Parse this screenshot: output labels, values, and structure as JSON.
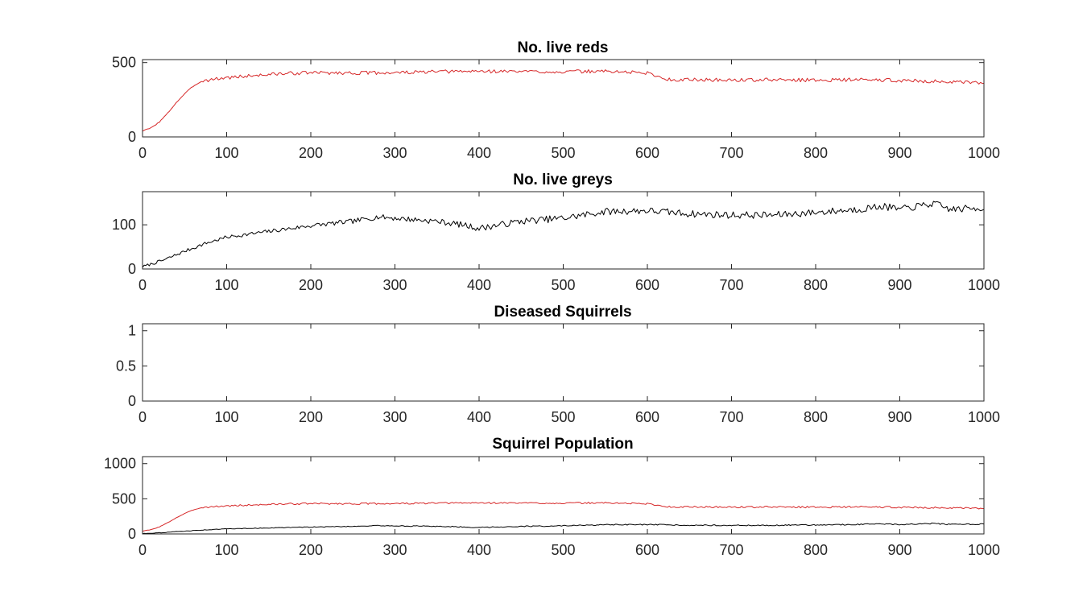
{
  "chart_data": [
    {
      "type": "line",
      "title": "No. live reds",
      "xlabel": "",
      "ylabel": "",
      "xlim": [
        0,
        1000
      ],
      "ylim": [
        0,
        520
      ],
      "xticks": [
        0,
        100,
        200,
        300,
        400,
        500,
        600,
        700,
        800,
        900,
        1000
      ],
      "xtick_labels": [
        "0",
        "100",
        "200",
        "300",
        "400",
        "500",
        "600",
        "700",
        "800",
        "900",
        "1000"
      ],
      "yticks": [
        0,
        500
      ],
      "ytick_labels": [
        "0",
        "500"
      ],
      "grid": false,
      "series": [
        {
          "color": "#d62728",
          "x": [
            0,
            10,
            20,
            30,
            40,
            50,
            60,
            70,
            80,
            90,
            100,
            125,
            150,
            175,
            200,
            250,
            300,
            350,
            400,
            450,
            500,
            550,
            600,
            625,
            650,
            700,
            750,
            800,
            850,
            900,
            950,
            1000
          ],
          "y": [
            40,
            60,
            100,
            160,
            230,
            290,
            340,
            375,
            385,
            392,
            398,
            410,
            420,
            428,
            432,
            430,
            432,
            438,
            442,
            440,
            438,
            442,
            430,
            385,
            385,
            382,
            384,
            382,
            385,
            380,
            372,
            360
          ]
        }
      ]
    },
    {
      "type": "line",
      "title": "No. live greys",
      "xlabel": "",
      "ylabel": "",
      "xlim": [
        0,
        1000
      ],
      "ylim": [
        0,
        175
      ],
      "xticks": [
        0,
        100,
        200,
        300,
        400,
        500,
        600,
        700,
        800,
        900,
        1000
      ],
      "xtick_labels": [
        "0",
        "100",
        "200",
        "300",
        "400",
        "500",
        "600",
        "700",
        "800",
        "900",
        "1000"
      ],
      "yticks": [
        0,
        100
      ],
      "ytick_labels": [
        "0",
        "100"
      ],
      "grid": false,
      "series": [
        {
          "color": "#000000",
          "x": [
            0,
            25,
            50,
            75,
            100,
            150,
            200,
            250,
            280,
            300,
            350,
            380,
            400,
            450,
            500,
            550,
            600,
            650,
            700,
            750,
            800,
            850,
            880,
            900,
            940,
            960,
            1000
          ],
          "y": [
            5,
            20,
            40,
            58,
            72,
            85,
            98,
            108,
            118,
            115,
            108,
            100,
            92,
            108,
            115,
            130,
            132,
            125,
            122,
            122,
            128,
            135,
            142,
            135,
            148,
            135,
            138
          ]
        }
      ]
    },
    {
      "type": "line",
      "title": "Diseased Squirrels",
      "xlabel": "",
      "ylabel": "",
      "xlim": [
        0,
        1000
      ],
      "ylim": [
        0,
        1.1
      ],
      "xticks": [
        0,
        100,
        200,
        300,
        400,
        500,
        600,
        700,
        800,
        900,
        1000
      ],
      "xtick_labels": [
        "0",
        "100",
        "200",
        "300",
        "400",
        "500",
        "600",
        "700",
        "800",
        "900",
        "1000"
      ],
      "yticks": [
        0,
        0.5,
        1
      ],
      "ytick_labels": [
        "0",
        "0.5",
        "1"
      ],
      "grid": false,
      "series": [
        {
          "color": "#000000",
          "x": [
            0,
            1000
          ],
          "y": [
            0,
            0
          ]
        },
        {
          "color": "#d62728",
          "x": [
            0,
            1000
          ],
          "y": [
            0,
            0
          ]
        }
      ]
    },
    {
      "type": "line",
      "title": "Squirrel Population",
      "xlabel": "",
      "ylabel": "",
      "xlim": [
        0,
        1000
      ],
      "ylim": [
        0,
        1100
      ],
      "xticks": [
        0,
        100,
        200,
        300,
        400,
        500,
        600,
        700,
        800,
        900,
        1000
      ],
      "xtick_labels": [
        "0",
        "100",
        "200",
        "300",
        "400",
        "500",
        "600",
        "700",
        "800",
        "900",
        "1000"
      ],
      "yticks": [
        0,
        500,
        1000
      ],
      "ytick_labels": [
        "0",
        "500",
        "1000"
      ],
      "grid": false,
      "series": [
        {
          "color": "#d62728",
          "x": [
            0,
            10,
            20,
            30,
            40,
            50,
            60,
            70,
            80,
            90,
            100,
            125,
            150,
            175,
            200,
            250,
            300,
            350,
            400,
            450,
            500,
            550,
            600,
            625,
            650,
            700,
            750,
            800,
            850,
            900,
            950,
            1000
          ],
          "y": [
            40,
            60,
            100,
            160,
            230,
            290,
            340,
            375,
            385,
            392,
            398,
            410,
            420,
            428,
            432,
            430,
            432,
            438,
            442,
            440,
            438,
            442,
            430,
            385,
            385,
            382,
            384,
            382,
            385,
            380,
            372,
            360
          ]
        },
        {
          "color": "#000000",
          "x": [
            0,
            25,
            50,
            75,
            100,
            150,
            200,
            250,
            280,
            300,
            350,
            380,
            400,
            450,
            500,
            550,
            600,
            650,
            700,
            750,
            800,
            850,
            880,
            900,
            940,
            960,
            1000
          ],
          "y": [
            5,
            20,
            40,
            58,
            72,
            85,
            98,
            108,
            118,
            115,
            108,
            100,
            92,
            108,
            115,
            130,
            132,
            125,
            122,
            122,
            128,
            135,
            142,
            135,
            148,
            135,
            138
          ]
        }
      ]
    }
  ]
}
